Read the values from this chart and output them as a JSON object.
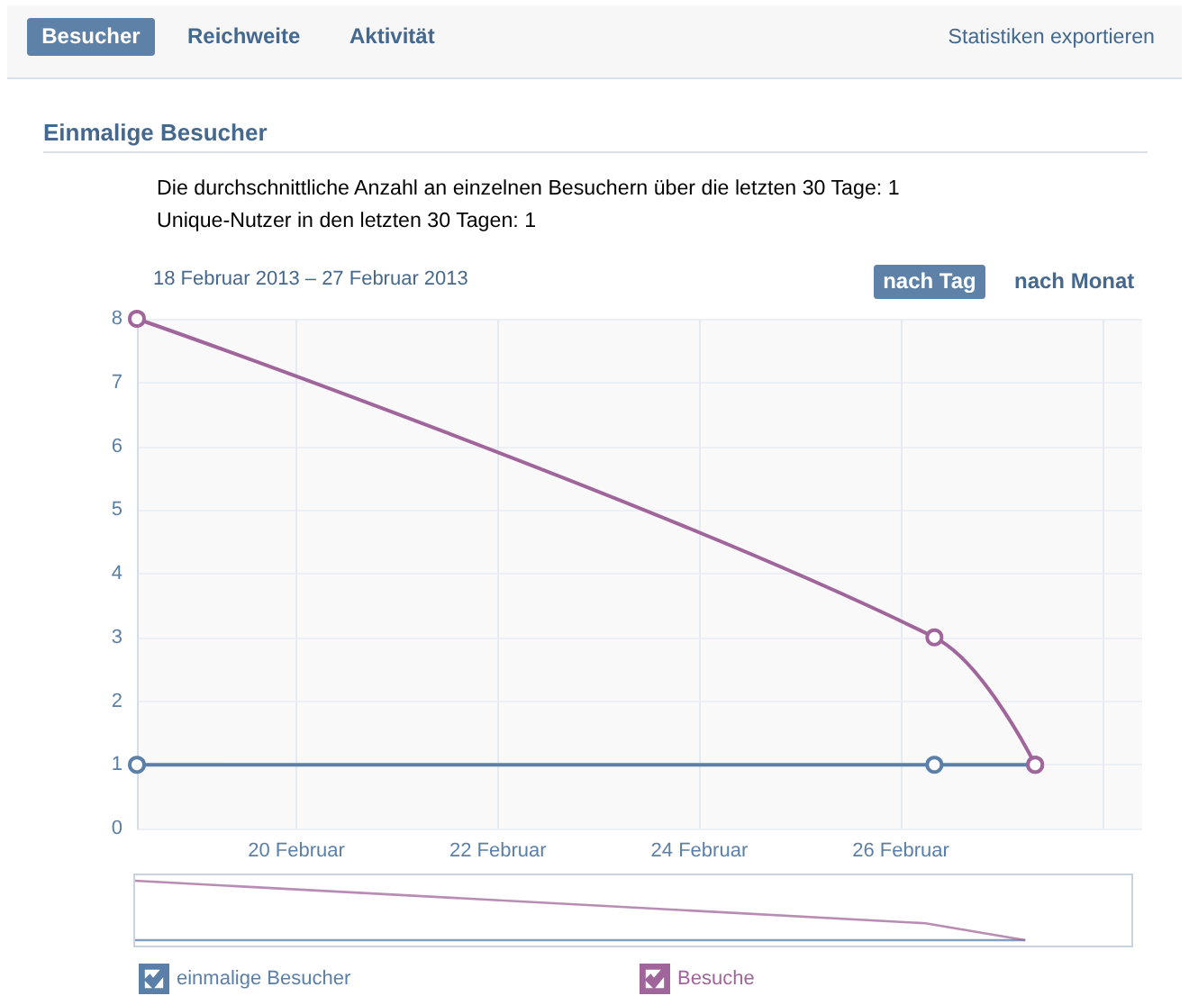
{
  "chart_data": {
    "type": "line",
    "title": "Einmalige Besucher",
    "subtitle": "18 Februar 2013 – 27 Februar 2013",
    "annotations": [
      "Besucher",
      "Reichweite",
      "Aktivität",
      "Statistiken exportieren",
      "Die durchschnittliche Anzahl an einzelnen Besuchern über die letzten 30 Tage: 1",
      "Unique-Nutzer in den letzten 30 Tagen: 1",
      "nach Tag",
      "nach Monat"
    ],
    "x": [
      "2013-02-18T10:00",
      "2013-02-26T08:00",
      "2013-02-27T08:00"
    ],
    "series": [
      {
        "name": "einmalige Besucher",
        "color": "#5a7fa8",
        "values": [
          1,
          1,
          1
        ]
      },
      {
        "name": "Besuche",
        "color": "#a0659a",
        "values": [
          8,
          3,
          1
        ]
      }
    ],
    "xlim": [
      "2013-02-18T10:00",
      "2013-02-28T09:30"
    ],
    "xticks": [
      {
        "value": "2013-02-20",
        "label": "20 Februar"
      },
      {
        "value": "2013-02-22",
        "label": "22 Februar"
      },
      {
        "value": "2013-02-24",
        "label": "24 Februar"
      },
      {
        "value": "2013-02-26",
        "label": "26 Februar"
      },
      {
        "value": "2013-02-28",
        "label": null
      }
    ],
    "ylim": [
      0,
      8
    ],
    "yticks": [
      0,
      1,
      2,
      3,
      4,
      5,
      6,
      7,
      8
    ],
    "grid": true,
    "legend": "bottom",
    "marker": "circle"
  }
}
